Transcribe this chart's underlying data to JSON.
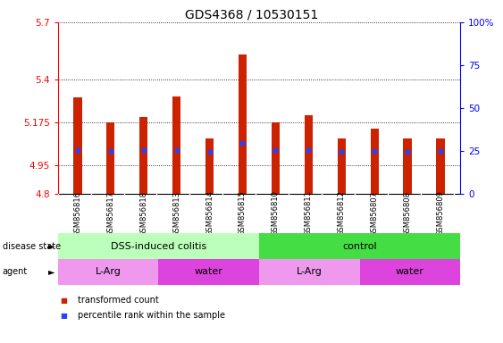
{
  "title": "GDS4368 / 10530151",
  "samples": [
    "GSM856816",
    "GSM856817",
    "GSM856818",
    "GSM856813",
    "GSM856814",
    "GSM856815",
    "GSM856810",
    "GSM856811",
    "GSM856812",
    "GSM856807",
    "GSM856808",
    "GSM856809"
  ],
  "bar_values": [
    5.305,
    5.175,
    5.205,
    5.31,
    5.09,
    5.53,
    5.175,
    5.21,
    5.09,
    5.14,
    5.09,
    5.09
  ],
  "blue_dot_values": [
    5.03,
    5.025,
    5.03,
    5.028,
    5.022,
    5.065,
    5.03,
    5.03,
    5.022,
    5.025,
    5.022,
    5.025
  ],
  "ymin": 4.8,
  "ymax": 5.7,
  "yticks": [
    4.8,
    4.95,
    5.175,
    5.4,
    5.7
  ],
  "ytick_labels": [
    "4.8",
    "4.95",
    "5.175",
    "5.4",
    "5.7"
  ],
  "y2ticks_pct": [
    0,
    25,
    50,
    75,
    100
  ],
  "y2tick_labels": [
    "0",
    "25",
    "50",
    "75",
    "100%"
  ],
  "bar_color": "#cc2200",
  "blue_color": "#2244ff",
  "disease_state_groups": [
    {
      "label": "DSS-induced colitis",
      "start": 0,
      "end": 6,
      "color": "#bbffbb"
    },
    {
      "label": "control",
      "start": 6,
      "end": 12,
      "color": "#44dd44"
    }
  ],
  "agent_groups": [
    {
      "label": "L-Arg",
      "start": 0,
      "end": 3,
      "color": "#ee99ee"
    },
    {
      "label": "water",
      "start": 3,
      "end": 6,
      "color": "#dd44dd"
    },
    {
      "label": "L-Arg",
      "start": 6,
      "end": 9,
      "color": "#ee99ee"
    },
    {
      "label": "water",
      "start": 9,
      "end": 12,
      "color": "#dd44dd"
    }
  ],
  "legend_items": [
    {
      "label": "transformed count",
      "color": "#cc2200"
    },
    {
      "label": "percentile rank within the sample",
      "color": "#2244ff"
    }
  ],
  "background_color": "#ffffff",
  "title_fontsize": 10,
  "tick_fontsize": 7.5,
  "bar_width": 0.25
}
